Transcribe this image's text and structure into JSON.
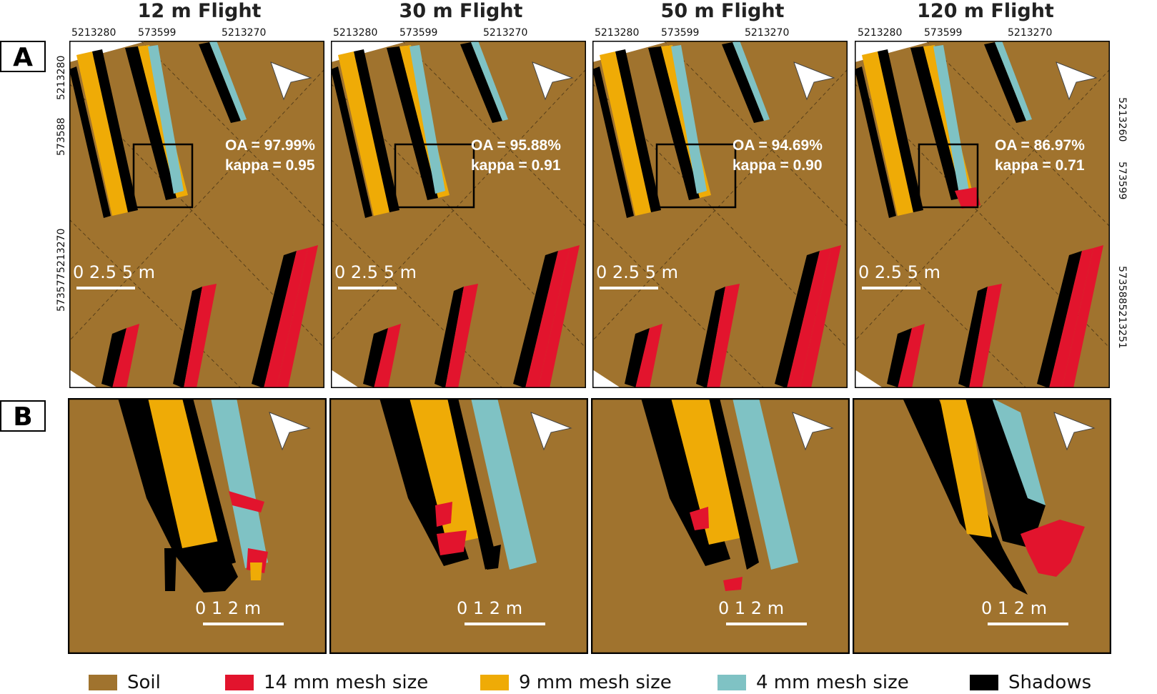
{
  "colors": {
    "soil": "#a0732e",
    "mesh14": "#e2142d",
    "mesh9": "#efab06",
    "mesh4": "#7fc2c4",
    "shadows": "#000000"
  },
  "row_labels": {
    "a": "A",
    "b": "B"
  },
  "top_coords": {
    "left": "5213280",
    "mid": "573599",
    "right": "5213270"
  },
  "left_coords": {
    "c1": "5213280",
    "c2": "573588",
    "c3": "5213270",
    "c4": "573577"
  },
  "right_coords": {
    "c1": "5213260",
    "c2": "573599",
    "c3": "5735885213251"
  },
  "scale_a": {
    "label": "0 2.5 5 m"
  },
  "scale_b": {
    "label": "0 1 2 m"
  },
  "flights": [
    {
      "title": "12 m Flight",
      "oa": "OA = 97.99%",
      "kappa": "kappa = 0.95"
    },
    {
      "title": "30 m Flight",
      "oa": "OA = 95.88%",
      "kappa": "kappa = 0.91"
    },
    {
      "title": "50 m Flight",
      "oa": "OA = 94.69%",
      "kappa": "kappa = 0.90"
    },
    {
      "title": "120 m Flight",
      "oa": "OA = 86.97%",
      "kappa": "kappa = 0.71"
    }
  ],
  "legend": [
    {
      "label": "Soil",
      "color": "#a0732e"
    },
    {
      "label": "14 mm mesh size",
      "color": "#e2142d"
    },
    {
      "label": "9 mm mesh size",
      "color": "#efab06"
    },
    {
      "label": "4 mm mesh size",
      "color": "#7fc2c4"
    },
    {
      "label": "Shadows",
      "color": "#000000"
    }
  ]
}
